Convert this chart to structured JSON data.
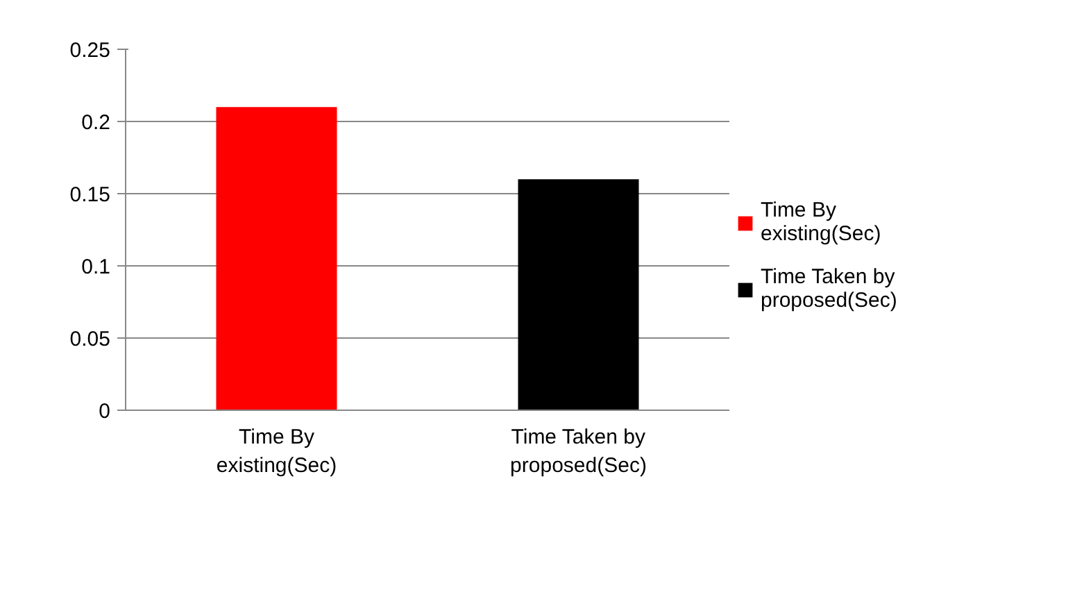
{
  "chart_data": {
    "type": "bar",
    "categories": [
      "Time By existing(Sec)",
      "Time Taken by proposed(Sec)"
    ],
    "series": [
      {
        "name": "Time By existing(Sec)",
        "color": "#ff0000",
        "values": [
          0.21,
          null
        ]
      },
      {
        "name": "Time Taken by proposed(Sec)",
        "color": "#000000",
        "values": [
          null,
          0.16
        ]
      }
    ],
    "stacked": true,
    "ylim": [
      0,
      0.25
    ],
    "yticks": [
      0,
      {
        "value": 0.05,
        "label": "0.05"
      },
      {
        "value": 0.1,
        "label": "0.1"
      },
      {
        "value": 0.15,
        "label": "0.15"
      },
      {
        "value": 0.2,
        "label": "0.2"
      },
      {
        "value": 0.25,
        "label": "0.25"
      }
    ],
    "grid": "y",
    "legend": "right"
  }
}
